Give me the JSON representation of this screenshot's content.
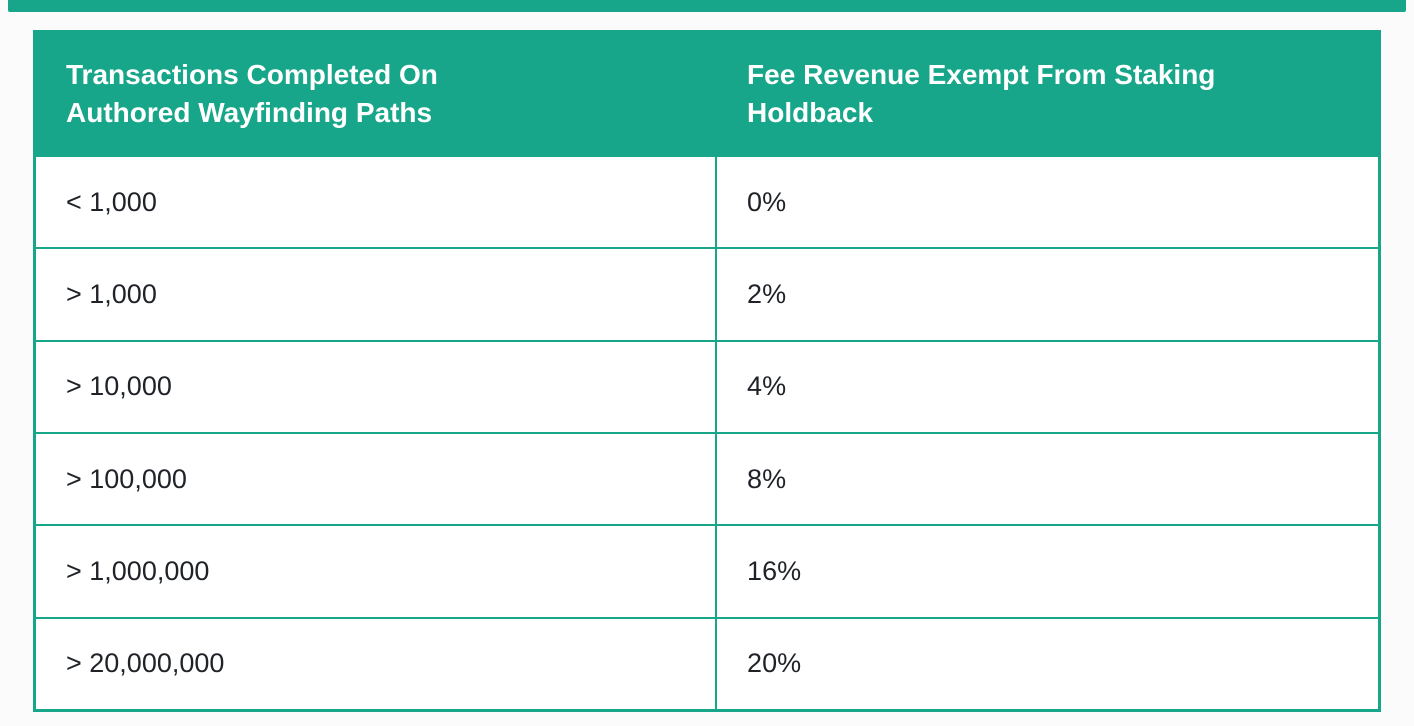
{
  "page": {
    "accent_color": "#17a689",
    "background_color": "#fbfbfc"
  },
  "chart_data": {
    "type": "table",
    "title": "",
    "columns": [
      "Transactions Completed On Authored Wayfinding Paths",
      "Fee Revenue Exempt From Staking Holdback"
    ],
    "rows": [
      [
        "< 1,000",
        "0%"
      ],
      [
        "> 1,000",
        "2%"
      ],
      [
        "> 10,000",
        "4%"
      ],
      [
        "> 100,000",
        "8%"
      ],
      [
        "> 1,000,000",
        "16%"
      ],
      [
        "> 20,000,000",
        "20%"
      ]
    ],
    "layout": {
      "header_background": "#17a689",
      "header_text_color": "#ffffff",
      "grid": "on"
    }
  }
}
